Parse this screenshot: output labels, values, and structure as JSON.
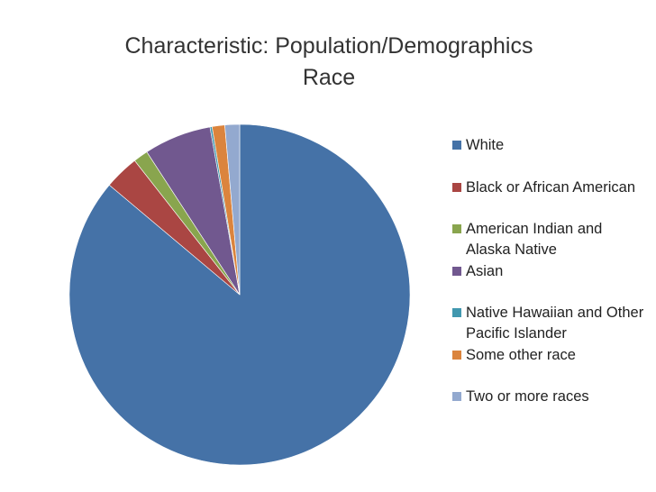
{
  "chart_data": {
    "type": "pie",
    "title_lines": [
      "Characteristic: Population/Demographics",
      "Race"
    ],
    "legend_position": "right",
    "start_angle_deg": 0,
    "direction": "clockwise",
    "slices": [
      {
        "label": "White",
        "value": 86.3,
        "color": "#4572A7"
      },
      {
        "label": "Black or African American",
        "value": 3.3,
        "color": "#AA4643"
      },
      {
        "label": "American Indian and Alaska Native",
        "value": 1.4,
        "color": "#89A54E"
      },
      {
        "label": "Asian",
        "value": 6.4,
        "color": "#71588F"
      },
      {
        "label": "Native Hawaiian and Other Pacific Islander",
        "value": 0.2,
        "color": "#4198AF"
      },
      {
        "label": "Some other race",
        "value": 1.2,
        "color": "#DB843D"
      },
      {
        "label": "Two or more races",
        "value": 1.4,
        "color": "#93A9CF"
      }
    ]
  }
}
